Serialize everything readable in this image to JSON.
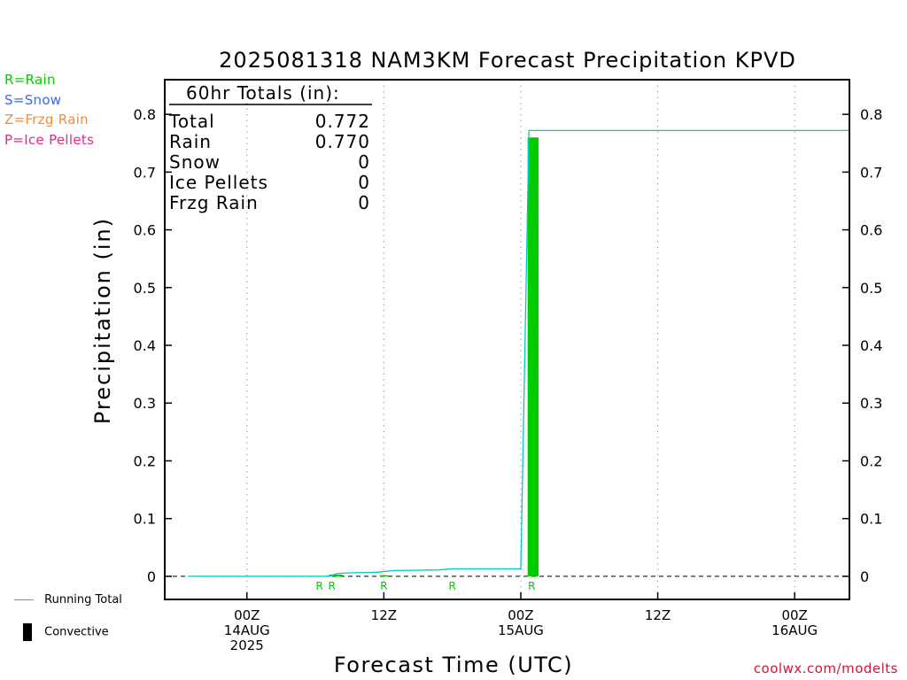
{
  "chart_data": {
    "type": "line",
    "title": "2025081318 NAM3KM Forecast Precipitation KPVD",
    "ylabel": "Precipitation (in)",
    "xlabel": "Forecast Time (UTC)",
    "ylim": [
      -0.04,
      0.86
    ],
    "xlim": [
      -6,
      44
    ],
    "grid": "vertical dotted",
    "y_ticks": [
      0,
      0.1,
      0.2,
      0.3,
      0.4,
      0.5,
      0.6,
      0.7,
      0.8
    ],
    "y_tick_labels": [
      "0",
      "0.1",
      "0.2",
      "0.3",
      "0.4",
      "0.5",
      "0.6",
      "0.7",
      "0.8"
    ],
    "x_ticks": [
      {
        "x": 0,
        "lines": [
          "00Z",
          "14AUG",
          "2025"
        ]
      },
      {
        "x": 10,
        "lines": [
          "12Z"
        ]
      },
      {
        "x": 20,
        "lines": [
          "00Z",
          "15AUG"
        ]
      },
      {
        "x": 30,
        "lines": [
          "12Z"
        ]
      },
      {
        "x": 40,
        "lines": [
          "00Z",
          "16AUG"
        ]
      }
    ],
    "running_total": {
      "name": "Running Total",
      "color": "#00c8c8",
      "points": [
        [
          -4.3,
          0
        ],
        [
          6.0,
          0
        ],
        [
          6.6,
          0.005
        ],
        [
          7.5,
          0.006
        ],
        [
          9.5,
          0.007
        ],
        [
          10.7,
          0.01
        ],
        [
          14.0,
          0.011
        ],
        [
          15.0,
          0.013
        ],
        [
          20.0,
          0.013
        ],
        [
          20.6,
          0.772
        ],
        [
          44,
          0.772
        ]
      ]
    },
    "convective_bars": [
      {
        "x0": 20.5,
        "x1": 21.3,
        "value": 0.76
      }
    ],
    "small_bars": [
      {
        "x0": 6.0,
        "x1": 7.0,
        "value": 0.003
      },
      {
        "x0": 9.7,
        "x1": 10.3,
        "value": 0.002
      }
    ],
    "ptype_marks": [
      {
        "x": 5.3,
        "label": "R"
      },
      {
        "x": 6.2,
        "label": "R"
      },
      {
        "x": 10.0,
        "label": "R"
      },
      {
        "x": 15.0,
        "label": "R"
      },
      {
        "x": 20.8,
        "label": "R"
      }
    ],
    "colors": {
      "rain": "#00cc00",
      "snow": "#3c64ff",
      "frzg_rain": "#f08c3c",
      "ice_pellets": "#e6288c",
      "running_total": "#00c8c8",
      "axis": "#000000",
      "grid": "#aaaaaa"
    }
  },
  "totals_box": {
    "title": "60hr Totals (in):",
    "rows": [
      {
        "label": "Total",
        "value": "0.772"
      },
      {
        "label": "Rain",
        "value": "0.770"
      },
      {
        "label": "Snow",
        "value": "0"
      },
      {
        "label": "Ice Pellets",
        "value": "0"
      },
      {
        "label": "Frzg Rain",
        "value": "0"
      }
    ]
  },
  "ptype_legend": [
    {
      "text": "R=Rain",
      "color": "#00cc00"
    },
    {
      "text": "S=Snow",
      "color": "#3c64ff"
    },
    {
      "text": "Z=Frzg Rain",
      "color": "#f08c3c"
    },
    {
      "text": "P=Ice Pellets",
      "color": "#e6288c"
    }
  ],
  "bottom_legend": {
    "running_total": "Running Total",
    "convective": "Convective"
  },
  "credit": "coolwx.com/modelts"
}
